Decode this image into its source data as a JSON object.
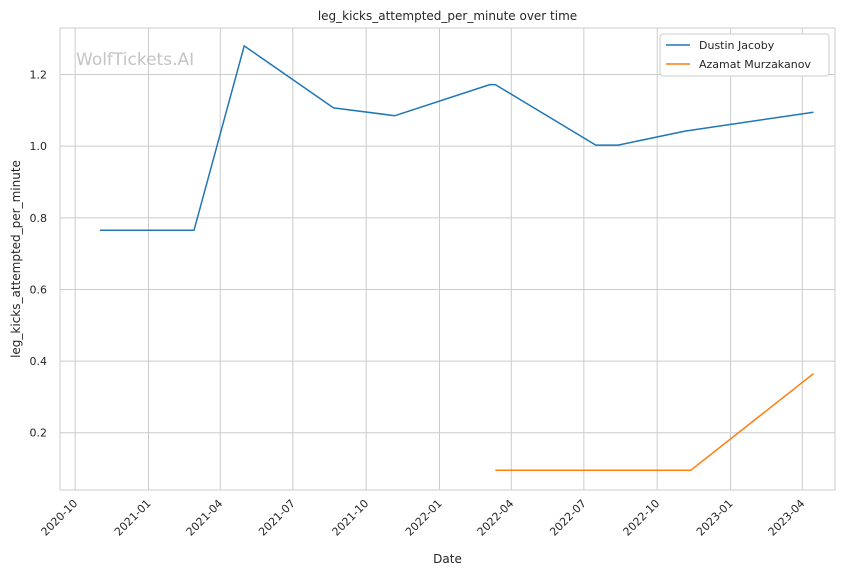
{
  "chart_data": {
    "type": "line",
    "title": "leg_kicks_attempted_per_minute over time",
    "xlabel": "Date",
    "ylabel": "leg_kicks_attempted_per_minute",
    "watermark": "WolfTickets.AI",
    "xlim": [
      "2020-09-12",
      "2023-05-12"
    ],
    "ylim": [
      0.04,
      1.33
    ],
    "x_ticks": [
      "2020-10",
      "2021-01",
      "2021-04",
      "2021-07",
      "2021-10",
      "2022-01",
      "2022-04",
      "2022-07",
      "2022-10",
      "2023-01",
      "2023-04"
    ],
    "y_ticks": [
      0.2,
      0.4,
      0.6,
      0.8,
      1.0,
      1.2
    ],
    "y_tick_labels": [
      "0.2",
      "0.4",
      "0.6",
      "0.8",
      "1.0",
      "1.2"
    ],
    "grid": true,
    "legend_position": "top-right",
    "series": [
      {
        "name": "Dustin Jacoby",
        "color": "#1f77b4",
        "x": [
          "2020-11-01",
          "2021-02-27",
          "2021-05-01",
          "2021-08-21",
          "2021-11-06",
          "2022-03-05",
          "2022-03-12",
          "2022-07-16",
          "2022-08-13",
          "2022-11-05",
          "2023-04-15"
        ],
        "y": [
          0.765,
          0.765,
          1.28,
          1.107,
          1.085,
          1.172,
          1.172,
          1.003,
          1.003,
          1.042,
          1.095
        ]
      },
      {
        "name": "Azamat Murzakanov",
        "color": "#ff7f0e",
        "x": [
          "2022-03-12",
          "2022-11-12",
          "2023-04-15"
        ],
        "y": [
          0.095,
          0.095,
          0.365
        ]
      }
    ]
  }
}
